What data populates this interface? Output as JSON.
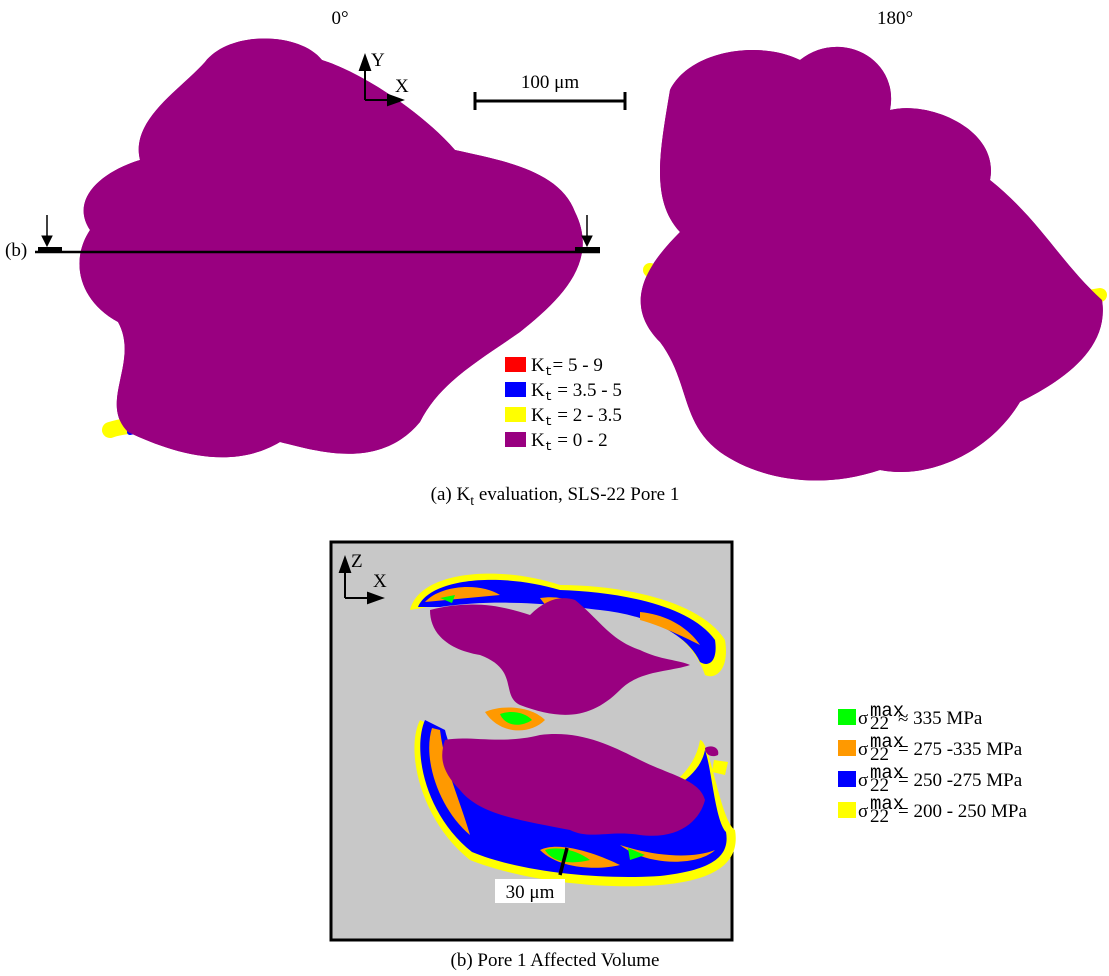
{
  "panel_a": {
    "view_labels": [
      "0°",
      "180°"
    ],
    "axis_y": "Y",
    "axis_x": "X",
    "scale_bar": "100 μm",
    "section_label": "(b)",
    "legend": [
      {
        "symbol": "K",
        "subscript": "t",
        "text": "= 5 - 9",
        "color": "#ff0000"
      },
      {
        "symbol": "K",
        "subscript": "t",
        "text": " = 3.5 - 5",
        "color": "#0000ff"
      },
      {
        "symbol": "K",
        "subscript": "t",
        "text": " = 2 - 3.5",
        "color": "#ffff00"
      },
      {
        "symbol": "K",
        "subscript": "t",
        "text": " = 0 - 2",
        "color": "#990080"
      }
    ],
    "caption": {
      "prefix": "(a) K",
      "subscript": "t",
      "suffix": " evaluation, SLS-22 Pore 1"
    }
  },
  "panel_b": {
    "axis_z": "Z",
    "axis_x": "X",
    "scale_bar": "30 μm",
    "legend": [
      {
        "symbol": "σ",
        "subscript": "22",
        "superscript": "max",
        "text": "≈ 335 MPa",
        "color": "#00ff00"
      },
      {
        "symbol": "σ",
        "subscript": "22",
        "superscript": "max",
        "text": "= 275 -335 MPa",
        "color": "#ff9900"
      },
      {
        "symbol": "σ",
        "subscript": "22",
        "superscript": "max",
        "text": "= 250 -275 MPa",
        "color": "#0000ff"
      },
      {
        "symbol": "σ",
        "subscript": "22",
        "superscript": "max",
        "text": "= 200 - 250 MPa",
        "color": "#ffff00"
      }
    ],
    "caption": "(b) Pore 1 Affected Volume"
  }
}
